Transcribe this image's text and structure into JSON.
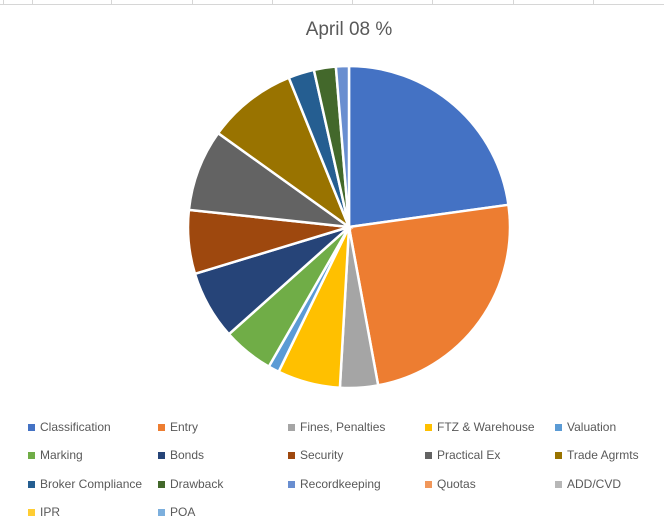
{
  "title": "April 08 %",
  "colors": {
    "text": "#595959",
    "gridline": "#d6d6d6",
    "background": "#ffffff",
    "slice_border": "#ffffff"
  },
  "chart_data": {
    "type": "pie",
    "title": "April 08 %",
    "unit": "percent",
    "start_angle_deg": 0,
    "direction": "clockwise",
    "legend_position": "bottom",
    "grid": false,
    "categories": [
      "Classification",
      "Entry",
      "Fines, Penalties",
      "FTZ & Warehouse",
      "Valuation",
      "Marking",
      "Bonds",
      "Security",
      "Practical Ex",
      "Trade Agrmts",
      "Broker Compliance",
      "Drawback",
      "Recordkeeping",
      "Quotas",
      "ADD/CVD",
      "IPR",
      "POA"
    ],
    "values": [
      22.8,
      24.3,
      3.8,
      6.3,
      1.1,
      5.1,
      6.9,
      6.4,
      8.2,
      9.0,
      2.6,
      2.2,
      1.3,
      0,
      0,
      0,
      0
    ],
    "slice_colors": [
      "#4472C4",
      "#ED7D31",
      "#A5A5A5",
      "#FFC000",
      "#5B9BD5",
      "#70AD47",
      "#264478",
      "#9E480E",
      "#636363",
      "#997300",
      "#255E91",
      "#43682B",
      "#698ED0",
      "#F1975A",
      "#B7B7B7",
      "#FFCD33",
      "#7CAFDD"
    ]
  }
}
